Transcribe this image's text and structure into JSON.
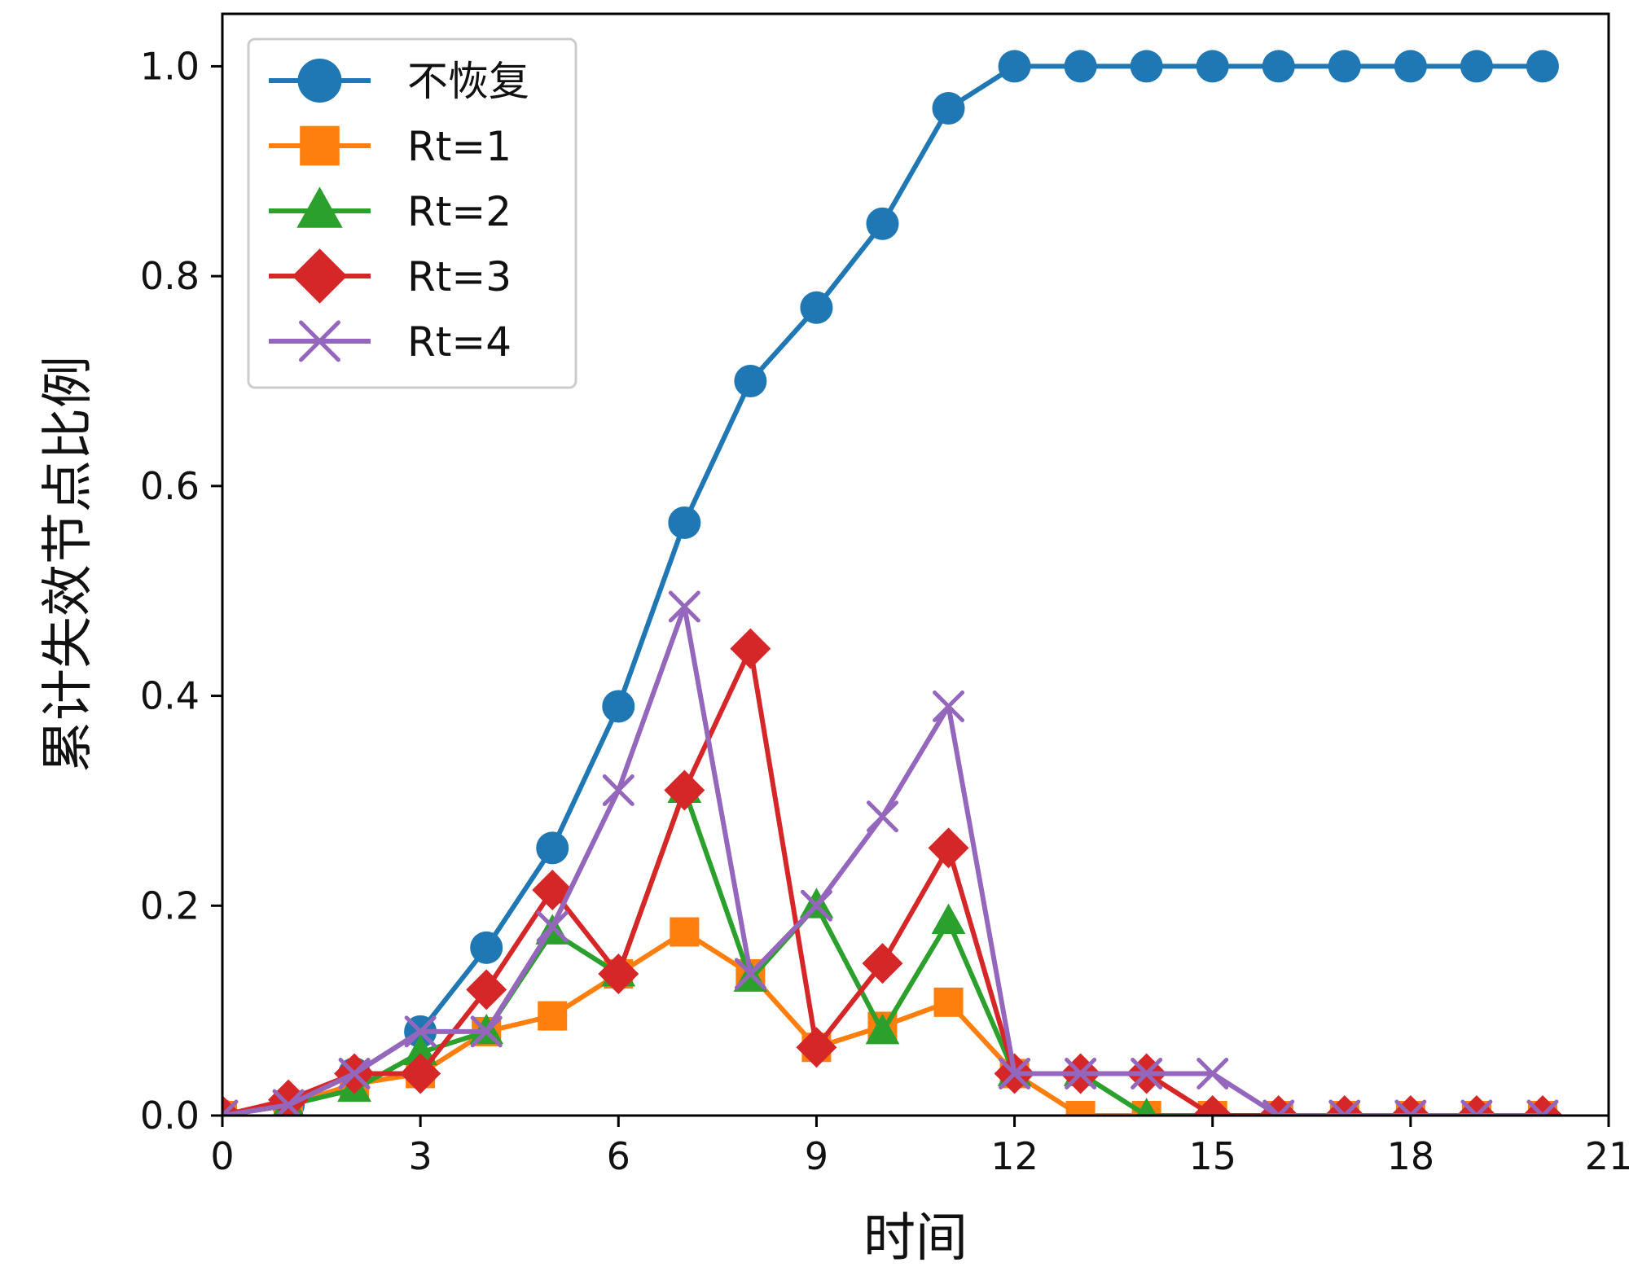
{
  "chart_data": {
    "type": "line",
    "title": "",
    "xlabel": "时间",
    "ylabel": "累计失效节点比例",
    "xlim": [
      0,
      21
    ],
    "ylim": [
      0,
      1.05
    ],
    "xticks": [
      0,
      3,
      6,
      9,
      12,
      15,
      18,
      21
    ],
    "yticks": [
      0.0,
      0.2,
      0.4,
      0.6,
      0.8,
      1.0
    ],
    "xtick_labels": [
      "0",
      "3",
      "6",
      "9",
      "12",
      "15",
      "18",
      "21"
    ],
    "ytick_labels": [
      "0.0",
      "0.2",
      "0.4",
      "0.6",
      "0.8",
      "1.0"
    ],
    "grid": false,
    "legend_position": "top-left",
    "x": [
      0,
      1,
      2,
      3,
      4,
      5,
      6,
      7,
      8,
      9,
      10,
      11,
      12,
      13,
      14,
      15,
      16,
      17,
      18,
      19,
      20
    ],
    "series": [
      {
        "name": "不恢复",
        "color": "#1f77b4",
        "marker": "circle",
        "values": [
          0.0,
          0.01,
          0.04,
          0.08,
          0.16,
          0.255,
          0.39,
          0.565,
          0.7,
          0.77,
          0.85,
          0.96,
          1.0,
          1.0,
          1.0,
          1.0,
          1.0,
          1.0,
          1.0,
          1.0,
          1.0
        ]
      },
      {
        "name": "Rt=1",
        "color": "#ff7f0e",
        "marker": "square",
        "values": [
          0.0,
          0.01,
          0.03,
          0.04,
          0.08,
          0.095,
          0.135,
          0.175,
          0.135,
          0.065,
          0.085,
          0.108,
          0.04,
          0.0,
          0.0,
          0.0,
          0.0,
          0.0,
          0.0,
          0.0,
          0.0
        ]
      },
      {
        "name": "Rt=2",
        "color": "#2ca02c",
        "marker": "triangle",
        "values": [
          0.0,
          0.01,
          0.025,
          0.06,
          0.08,
          0.175,
          0.135,
          0.31,
          0.13,
          0.2,
          0.08,
          0.185,
          0.04,
          0.04,
          0.0,
          0.0,
          0.0,
          0.0,
          0.0,
          0.0,
          0.0
        ]
      },
      {
        "name": "Rt=3",
        "color": "#d62728",
        "marker": "diamond",
        "values": [
          0.0,
          0.015,
          0.04,
          0.04,
          0.12,
          0.215,
          0.135,
          0.31,
          0.445,
          0.065,
          0.145,
          0.255,
          0.04,
          0.04,
          0.04,
          0.0,
          0.0,
          0.0,
          0.0,
          0.0,
          0.0
        ]
      },
      {
        "name": "Rt=4",
        "color": "#9467bd",
        "marker": "x",
        "values": [
          0.0,
          0.01,
          0.04,
          0.08,
          0.08,
          0.18,
          0.31,
          0.485,
          0.135,
          0.2,
          0.285,
          0.39,
          0.04,
          0.04,
          0.04,
          0.04,
          0.0,
          0.0,
          0.0,
          0.0,
          0.0
        ]
      }
    ]
  }
}
